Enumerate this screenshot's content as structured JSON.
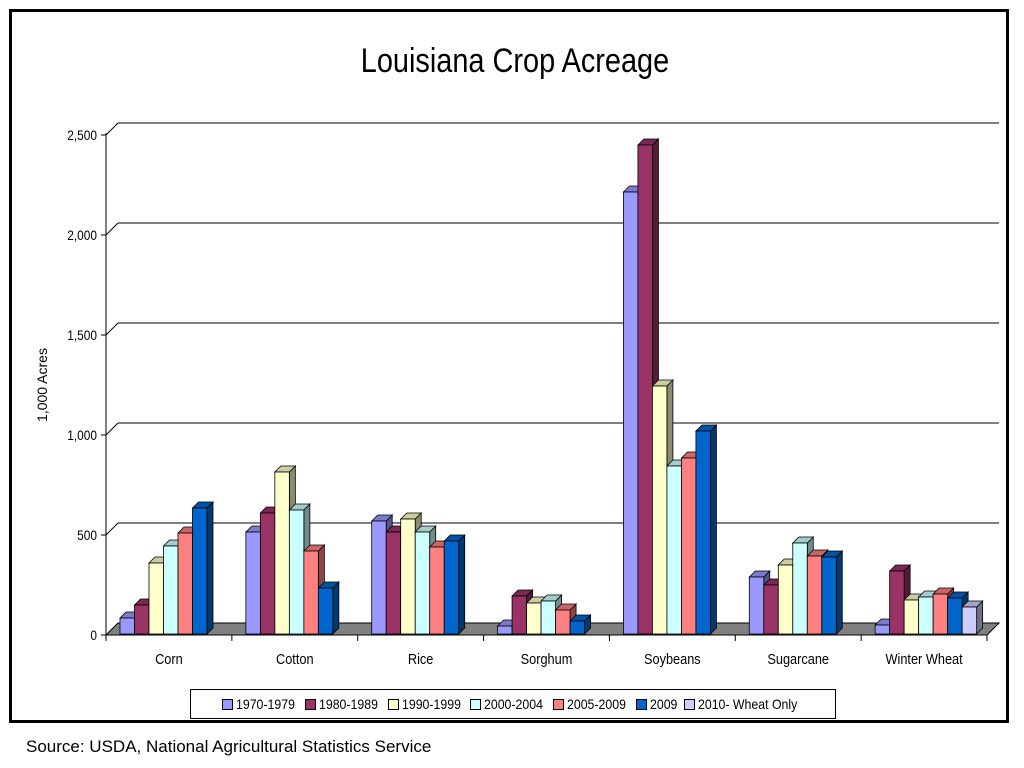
{
  "source_note": "Source: USDA, National Agricultural Statistics Service",
  "chart_data": {
    "type": "bar",
    "title": "Louisiana Crop Acreage",
    "xlabel": "",
    "ylabel": "1,000 Acres",
    "ylim": [
      0,
      2500
    ],
    "yticks": [
      0,
      500,
      1000,
      1500,
      2000,
      2500
    ],
    "ytick_labels": [
      "0",
      "500",
      "1,000",
      "1,500",
      "2,000",
      "2,500"
    ],
    "grid": true,
    "legend_position": "bottom",
    "three_d": true,
    "categories": [
      "Corn",
      "Cotton",
      "Rice",
      "Sorghum",
      "Soybeans",
      "Sugarcane",
      "Winter Wheat"
    ],
    "series": [
      {
        "name": "1970-1979",
        "color": "#9999FF",
        "values": [
          85,
          515,
          570,
          45,
          2215,
          290,
          50
        ]
      },
      {
        "name": "1980-1989",
        "color": "#993366",
        "values": [
          150,
          610,
          515,
          195,
          2450,
          250,
          320
        ]
      },
      {
        "name": "1990-1999",
        "color": "#FFFFCC",
        "values": [
          360,
          815,
          580,
          160,
          1245,
          350,
          175
        ]
      },
      {
        "name": "2000-2004",
        "color": "#CCFFFF",
        "values": [
          445,
          625,
          515,
          170,
          845,
          460,
          190
        ]
      },
      {
        "name": "2005-2009",
        "color": "#FF8080",
        "values": [
          510,
          420,
          440,
          125,
          885,
          395,
          205
        ]
      },
      {
        "name": "2009",
        "color": "#0066CC",
        "values": [
          635,
          235,
          470,
          70,
          1020,
          390,
          185
        ]
      },
      {
        "name": "2010- Wheat Only",
        "color": "#CCCCFF",
        "values": [
          null,
          null,
          null,
          null,
          null,
          null,
          140
        ]
      }
    ]
  }
}
